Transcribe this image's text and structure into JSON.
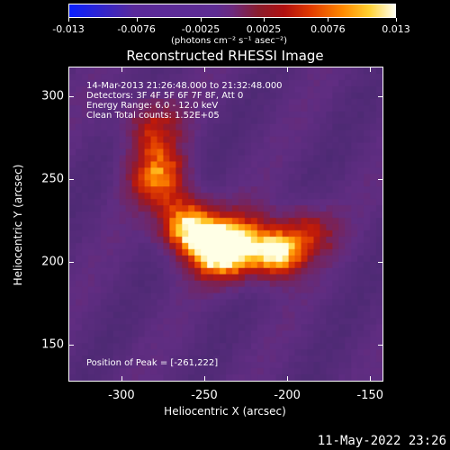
{
  "colorbar": {
    "tick_labels": [
      "-0.013",
      "-0.0076",
      "-0.0025",
      "0.0025",
      "0.0076",
      "0.013"
    ],
    "units": "(photons cm⁻² s⁻¹ asec⁻²)"
  },
  "plot": {
    "title": "Reconstructed RHESSI Image",
    "xlabel": "Heliocentric X (arcsec)",
    "ylabel": "Heliocentric Y (arcsec)",
    "xticks": [
      "-300",
      "-250",
      "-200",
      "-150"
    ],
    "yticks": [
      "300",
      "250",
      "200",
      "150"
    ],
    "info_lines": [
      "14-Mar-2013 21:26:48.000 to 21:32:48.000",
      "Detectors: 3F 4F 5F 6F 7F 8F, Att 0",
      "Energy Range: 6.0 - 12.0 keV",
      "Clean    Total counts: 1.52E+05"
    ],
    "peak_label": "Position of Peak = [-261,222]"
  },
  "chart_data": {
    "type": "heatmap",
    "title": "Reconstructed RHESSI Image",
    "xlabel": "Heliocentric X (arcsec)",
    "ylabel": "Heliocentric Y (arcsec)",
    "xlim": [
      -332,
      -142
    ],
    "ylim": [
      128,
      318
    ],
    "colorbar_range": [
      -0.013,
      0.013
    ],
    "colorbar_ticks": [
      -0.013,
      -0.0076,
      -0.0025,
      0.0025,
      0.0076,
      0.013
    ],
    "peak": [
      -261,
      222
    ],
    "sources": [
      {
        "x": -261,
        "y": 222,
        "sigma": 12,
        "amp": 1.0
      },
      {
        "x": -243,
        "y": 207,
        "sigma": 12,
        "amp": 0.9
      },
      {
        "x": -205,
        "y": 205,
        "sigma": 10,
        "amp": 0.85
      },
      {
        "x": -278,
        "y": 252,
        "sigma": 13,
        "amp": 0.7
      },
      {
        "x": -283,
        "y": 283,
        "sigma": 13,
        "amp": 0.5
      },
      {
        "x": -188,
        "y": 218,
        "sigma": 12,
        "amp": 0.55
      },
      {
        "x": -225,
        "y": 210,
        "sigma": 14,
        "amp": 0.75
      }
    ]
  },
  "timestamp": "11-May-2022 23:26"
}
